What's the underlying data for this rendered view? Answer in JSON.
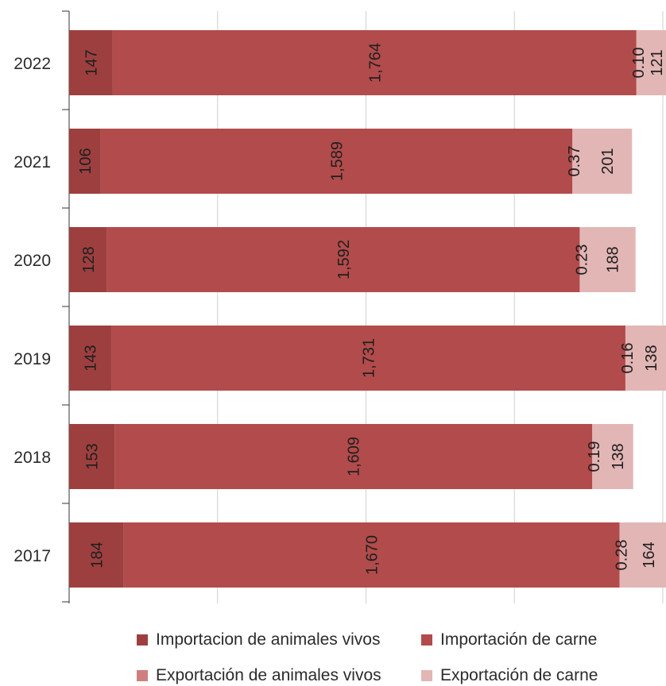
{
  "chart_data": {
    "type": "bar",
    "orientation": "horizontal",
    "stacked": true,
    "title": "",
    "xlabel": "",
    "ylabel": "",
    "categories": [
      "2022",
      "2021",
      "2020",
      "2019",
      "2018",
      "2017"
    ],
    "series": [
      {
        "name": "Importacion de animales vivos",
        "color": "#9e3f3f",
        "values": [
          147,
          106,
          128,
          143,
          153,
          184
        ],
        "labels": [
          "147",
          "106",
          "128",
          "143",
          "153",
          "184"
        ]
      },
      {
        "name": "Importación de carne",
        "color": "#b24b4b",
        "values": [
          1764,
          1589,
          1592,
          1731,
          1609,
          1670
        ],
        "labels": [
          "1,764",
          "1,589",
          "1,592",
          "1,731",
          "1,609",
          "1,670"
        ]
      },
      {
        "name": "Exportación de animales vivos",
        "color": "#cf7f7f",
        "values": [
          0.1,
          0.37,
          0.23,
          0.16,
          0.19,
          0.28
        ],
        "labels": [
          "0.10",
          "0.37",
          "0.23",
          "0.16",
          "0.19",
          "0.28"
        ]
      },
      {
        "name": "Exportación de carne",
        "color": "#e3b6b6",
        "values": [
          121,
          201,
          188,
          138,
          138,
          164
        ],
        "labels": [
          "121",
          "201",
          "188",
          "138",
          "138",
          "164"
        ]
      }
    ],
    "xlim": [
      0,
      2000
    ],
    "grid": "vertical",
    "legend_position": "bottom"
  }
}
